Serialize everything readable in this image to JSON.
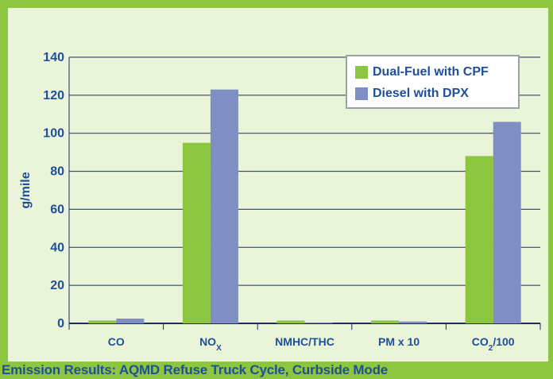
{
  "caption": "Emission Results: AQMD Refuse Truck Cycle, Curbside Mode",
  "colors": {
    "frame": "#8cc63f",
    "plot_bg": "#eaf4d8",
    "text": "#1f4f9a",
    "series1": "#8cc63f",
    "series2": "#7f8fc4"
  },
  "chart_data": {
    "type": "bar",
    "title": "",
    "xlabel": "",
    "ylabel": "g/mile",
    "ylim": [
      0,
      140
    ],
    "yticks": [
      0,
      20,
      40,
      60,
      80,
      100,
      120,
      140
    ],
    "grid": true,
    "legend_position": "top-right",
    "categories": [
      "CO",
      "NOx",
      "NMHC/THC",
      "PM x 10",
      "CO2/100"
    ],
    "category_display": [
      {
        "main": "CO",
        "sub": ""
      },
      {
        "main": "NO",
        "sub": "X"
      },
      {
        "main": "NMHC/THC",
        "sub": ""
      },
      {
        "main": "PM x 10",
        "sub": ""
      },
      {
        "main": "CO",
        "sub": "2",
        "tail": "/100"
      }
    ],
    "series": [
      {
        "name": "Dual-Fuel with CPF",
        "color": "#8cc63f",
        "values": [
          1.5,
          95,
          1.5,
          1.5,
          88
        ]
      },
      {
        "name": "Diesel with DPX",
        "color": "#7f8fc4",
        "values": [
          2.5,
          123,
          0.3,
          1.0,
          106
        ]
      }
    ]
  }
}
